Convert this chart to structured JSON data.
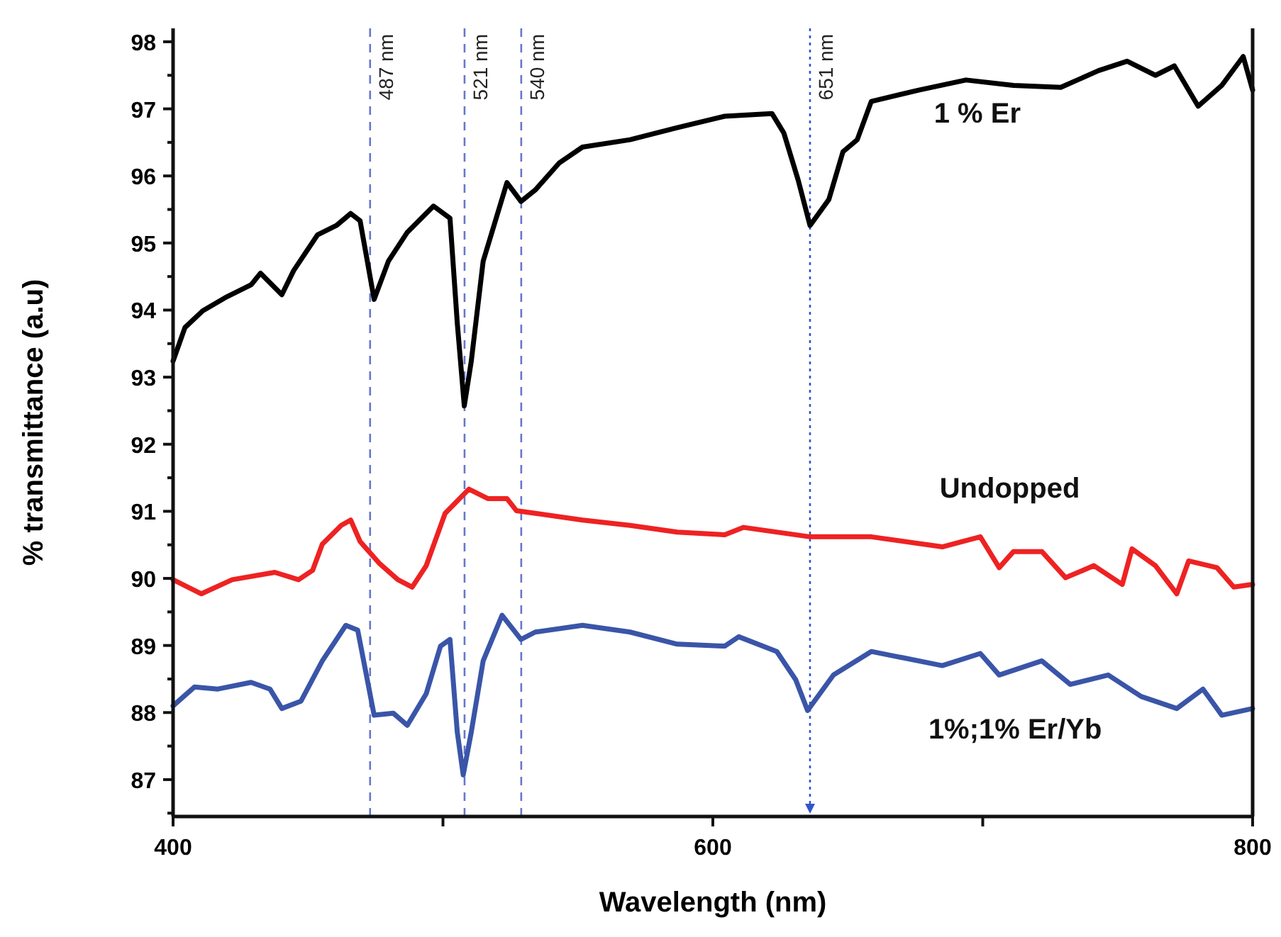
{
  "chart_data": {
    "type": "line",
    "xlabel": "Wavelength (nm)",
    "ylabel": "% transmittance (a.u)",
    "xlim": [
      400,
      800
    ],
    "xticks": [
      400,
      {
        "value": 500,
        "label": null
      },
      600,
      {
        "value": 700,
        "label": null
      },
      800
    ],
    "ylim": [
      86.45,
      98.2
    ],
    "yticks": [
      {
        "value": 86.5,
        "label": null
      },
      87,
      {
        "value": 87.5,
        "label": null
      },
      88,
      {
        "value": 88.5,
        "label": null
      },
      89,
      {
        "value": 89.5,
        "label": null
      },
      90,
      {
        "value": 90.5,
        "label": null
      },
      91,
      {
        "value": 91.5,
        "label": null
      },
      92,
      {
        "value": 92.5,
        "label": null
      },
      93,
      {
        "value": 93.5,
        "label": null
      },
      94,
      {
        "value": 94.5,
        "label": null
      },
      95,
      {
        "value": 95.5,
        "label": null
      },
      96,
      {
        "value": 96.5,
        "label": null
      },
      97,
      {
        "value": 97.5,
        "label": null
      },
      98
    ],
    "grid": false,
    "marker": "none",
    "line_style": "solid",
    "ref_lines": [
      {
        "axis": "x",
        "value": 473,
        "label": "487 nm",
        "color": "#6677cc",
        "line_style": "dashed"
      },
      {
        "axis": "x",
        "value": 508,
        "label": "521 nm",
        "color": "#6677cc",
        "line_style": "dashed"
      },
      {
        "axis": "x",
        "value": 529,
        "label": "540 nm",
        "color": "#6677cc",
        "line_style": "dashed"
      },
      {
        "axis": "x",
        "value": 636,
        "label": "651 nm",
        "color": "#3355cc",
        "line_style": "dotted"
      }
    ],
    "series": [
      {
        "name": "1 % Er",
        "color": "#000000",
        "x": [
          400,
          404.4,
          411,
          420,
          429,
          432.4,
          440.3,
          444.7,
          453.5,
          460.5,
          465.8,
          469.3,
          474.5,
          479.8,
          486.8,
          496.5,
          502.6,
          505.3,
          507.9,
          510.5,
          514.9,
          523.7,
          528.9,
          534.2,
          543,
          551.7,
          569.3,
          586.8,
          604.4,
          621.9,
          626.3,
          631.6,
          636,
          643,
          648.2,
          653.5,
          658.7,
          676.3,
          693.8,
          711.4,
          728.9,
          742.9,
          753.5,
          764,
          771,
          779.8,
          788.6,
          796.5,
          800
        ],
        "values": [
          93.24,
          93.74,
          93.99,
          94.2,
          94.38,
          94.55,
          94.23,
          94.59,
          95.12,
          95.26,
          95.44,
          95.33,
          94.16,
          94.73,
          95.16,
          95.55,
          95.37,
          93.81,
          92.57,
          93.24,
          94.73,
          95.9,
          95.62,
          95.79,
          96.19,
          96.43,
          96.54,
          96.72,
          96.89,
          96.93,
          96.64,
          95.94,
          95.26,
          95.65,
          96.36,
          96.54,
          97.11,
          97.28,
          97.43,
          97.35,
          97.32,
          97.57,
          97.71,
          97.5,
          97.64,
          97.04,
          97.35,
          97.78,
          97.28
        ]
      },
      {
        "name": "Undopped",
        "color": "#ee2222",
        "x": [
          400,
          410.5,
          421.9,
          437.7,
          446.5,
          451.7,
          455.3,
          462.3,
          465.8,
          469.3,
          476.3,
          483.3,
          488.6,
          493.8,
          500.8,
          509.6,
          516.6,
          523.7,
          527.2,
          534.2,
          551.7,
          569.3,
          586.8,
          604.4,
          611.4,
          636,
          658.7,
          685,
          699.1,
          706.1,
          711.4,
          721.9,
          730.7,
          741.2,
          751.7,
          755.3,
          764,
          771.9,
          776.3,
          786.8,
          793,
          800
        ],
        "values": [
          89.98,
          89.77,
          89.98,
          90.09,
          89.98,
          90.12,
          90.51,
          90.79,
          90.87,
          90.55,
          90.23,
          89.98,
          89.87,
          90.19,
          90.97,
          91.33,
          91.19,
          91.19,
          91.01,
          90.97,
          90.87,
          90.79,
          90.69,
          90.65,
          90.76,
          90.62,
          90.62,
          90.47,
          90.62,
          90.16,
          90.4,
          90.4,
          90.01,
          90.19,
          89.91,
          90.44,
          90.19,
          89.77,
          90.26,
          90.16,
          89.87,
          89.91
        ]
      },
      {
        "name": "1%;1% Er/Yb",
        "color": "#3a55a8",
        "x": [
          400,
          407.9,
          416.6,
          428.9,
          435.9,
          440.3,
          447.4,
          455.3,
          464,
          468.4,
          474.5,
          481.6,
          486.8,
          493.8,
          499.1,
          502.6,
          505.3,
          507.5,
          510.5,
          514.9,
          521.9,
          528.9,
          534.2,
          551.7,
          569.3,
          586.8,
          604.4,
          609.6,
          623.7,
          630.7,
          635.1,
          644.7,
          658.7,
          667.5,
          685,
          699.1,
          706.1,
          721.9,
          732.4,
          746.5,
          758.7,
          771.9,
          781.6,
          788.6,
          800
        ],
        "values": [
          88.1,
          88.38,
          88.35,
          88.45,
          88.35,
          88.06,
          88.17,
          88.77,
          89.3,
          89.23,
          87.96,
          87.99,
          87.81,
          88.28,
          88.99,
          89.09,
          87.71,
          87.07,
          87.71,
          88.77,
          89.45,
          89.09,
          89.2,
          89.3,
          89.2,
          89.02,
          88.99,
          89.13,
          88.91,
          88.49,
          88.03,
          88.56,
          88.91,
          88.84,
          88.7,
          88.88,
          88.56,
          88.77,
          88.42,
          88.56,
          88.24,
          88.06,
          88.35,
          87.96,
          88.06
        ]
      }
    ]
  }
}
